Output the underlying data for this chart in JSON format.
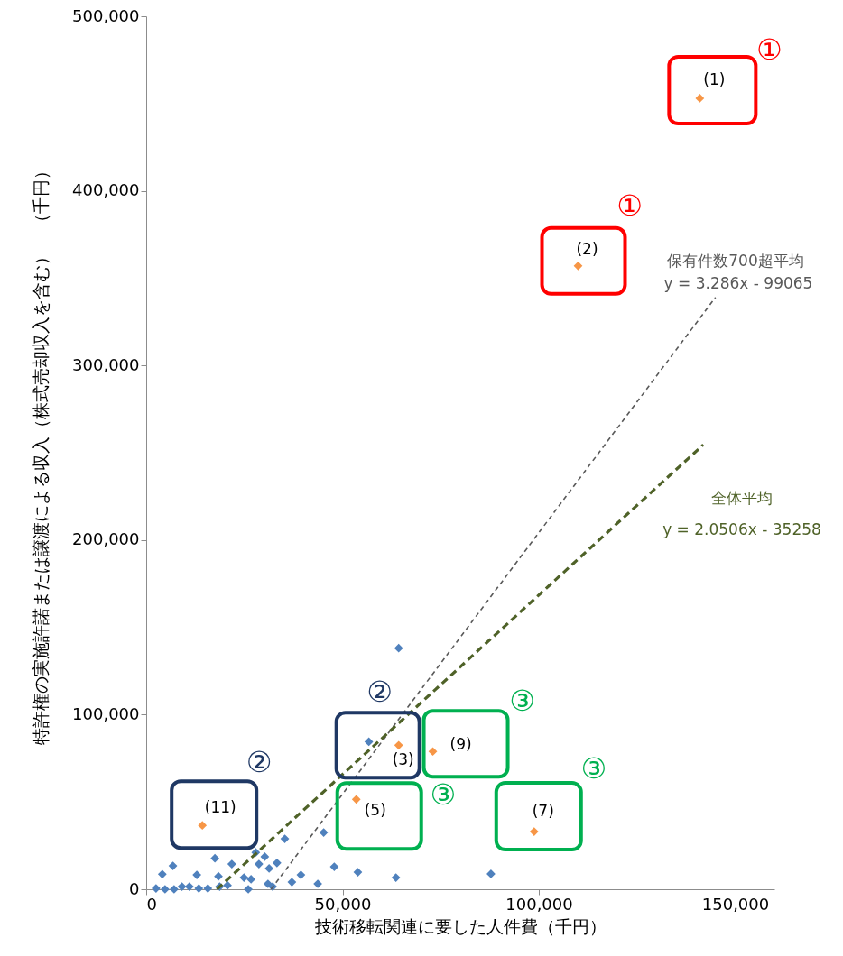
{
  "chart_data": {
    "type": "scatter",
    "xlabel": "技術移転関連に要した人件費（千円）",
    "ylabel": "特許権の実施許諾または譲渡による収入（株式売却収入を含む）　（千円）",
    "xlim": [
      0,
      160000
    ],
    "ylim": [
      0,
      500000
    ],
    "xticks": [
      {
        "value": 0,
        "label": "0"
      },
      {
        "value": 50000,
        "label": "50,000"
      },
      {
        "value": 100000,
        "label": "100,000"
      },
      {
        "value": 150000,
        "label": "150,000"
      }
    ],
    "yticks": [
      {
        "value": 0,
        "label": "0"
      },
      {
        "value": 100000,
        "label": "100,000"
      },
      {
        "value": 200000,
        "label": "200,000"
      },
      {
        "value": 300000,
        "label": "300,000"
      },
      {
        "value": 400000,
        "label": "400,000"
      },
      {
        "value": 500000,
        "label": "500,000"
      }
    ],
    "grid": false,
    "series": [
      {
        "type": "scatter",
        "marker": "diamond",
        "color": "#4f81bd",
        "x": [
          64300,
          56700,
          45200,
          35300,
          47900,
          53900,
          63600,
          87800,
          6800,
          4100,
          2500,
          4800,
          7100,
          9100,
          11000,
          12900,
          13400,
          15700,
          17500,
          18400,
          18700,
          20700,
          21800,
          24900,
          26000,
          26700,
          27900,
          28700,
          30200,
          31300,
          33300,
          31000,
          32200,
          37100,
          39400,
          43700
        ],
        "values": [
          138100,
          84500,
          32500,
          28900,
          12900,
          9800,
          6700,
          8800,
          13400,
          8600,
          500,
          0,
          0,
          1500,
          1500,
          8200,
          500,
          500,
          17700,
          7400,
          1500,
          2200,
          14400,
          6700,
          0,
          5700,
          21100,
          14400,
          18600,
          11900,
          15100,
          3100,
          1500,
          4100,
          8200,
          3100
        ]
      },
      {
        "type": "scatter",
        "marker": "diamond",
        "color": "#f79646",
        "x": [
          141000,
          110000,
          64300,
          73000,
          53500,
          98800,
          14300
        ],
        "values": [
          453000,
          357000,
          82500,
          78900,
          51500,
          33000,
          36600
        ]
      },
      {
        "type": "line",
        "name": "保有件数700超平均",
        "marker": "none",
        "line_style": "dashed",
        "color": "#595959",
        "x": [
          31800,
          145000
        ],
        "values": [
          0,
          339000
        ]
      },
      {
        "type": "line",
        "name": "全体平均",
        "marker": "none",
        "line_style": "dashed",
        "color": "#4f6228",
        "x": [
          18000,
          141900
        ],
        "values": [
          0,
          254600
        ]
      }
    ],
    "annotations": [
      {
        "text": "(1)",
        "x": 141000,
        "y": 453000
      },
      {
        "text": "(2)",
        "x": 110000,
        "y": 357000
      },
      {
        "text": "(3)",
        "x": 64300,
        "y": 82500
      },
      {
        "text": "(9)",
        "x": 73000,
        "y": 78900
      },
      {
        "text": "(5)",
        "x": 53500,
        "y": 51500
      },
      {
        "text": "(7)",
        "x": 98800,
        "y": 33000
      },
      {
        "text": "(11)",
        "x": 14300,
        "y": 36600
      },
      {
        "text": "①",
        "x": 141000,
        "y": 453000
      },
      {
        "text": "①",
        "x": 110000,
        "y": 357000
      },
      {
        "text": "②",
        "x": 64300,
        "y": 82500
      },
      {
        "text": "③",
        "x": 73000,
        "y": 78900
      },
      {
        "text": "③",
        "x": 53500,
        "y": 51500
      },
      {
        "text": "③",
        "x": 98800,
        "y": 33000
      },
      {
        "text": "②",
        "x": 14300,
        "y": 36600
      },
      "y = 3.286x - 99065",
      "y = 2.0506x - 35258"
    ]
  }
}
